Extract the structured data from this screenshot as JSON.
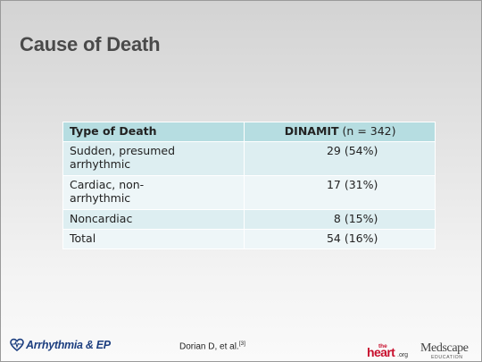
{
  "slide": {
    "title": "Cause of Death"
  },
  "table": {
    "header_col1": "Type of Death",
    "header_col2_bold": "DINAMIT",
    "header_col2_rest": " (n = 342)",
    "rows": [
      {
        "type_line1": "Sudden, presumed",
        "type_line2": "arrhythmic",
        "value": "29 (54%)"
      },
      {
        "type_line1": "Cardiac, non-",
        "type_line2": "arrhythmic",
        "value": "17 (31%)"
      },
      {
        "type": "Noncardiac",
        "value": "8 (15%)"
      },
      {
        "type": "Total",
        "value": "54 (16%)"
      }
    ]
  },
  "footer": {
    "brand": "Arrhythmia & EP",
    "citation": "Dorian D, et al.",
    "citation_ref": "[3]",
    "theheart_the": "the",
    "theheart_main": "heart",
    "theheart_org": ".org",
    "medscape_main": "Medscape",
    "medscape_sub": "EDUCATION"
  },
  "colors": {
    "header_fill": "#b6dde1",
    "row_fill": "#ddeef1",
    "row_alt_fill": "#eef6f8",
    "brand_blue": "#1d3f80",
    "theheart_red": "#c8102e"
  }
}
